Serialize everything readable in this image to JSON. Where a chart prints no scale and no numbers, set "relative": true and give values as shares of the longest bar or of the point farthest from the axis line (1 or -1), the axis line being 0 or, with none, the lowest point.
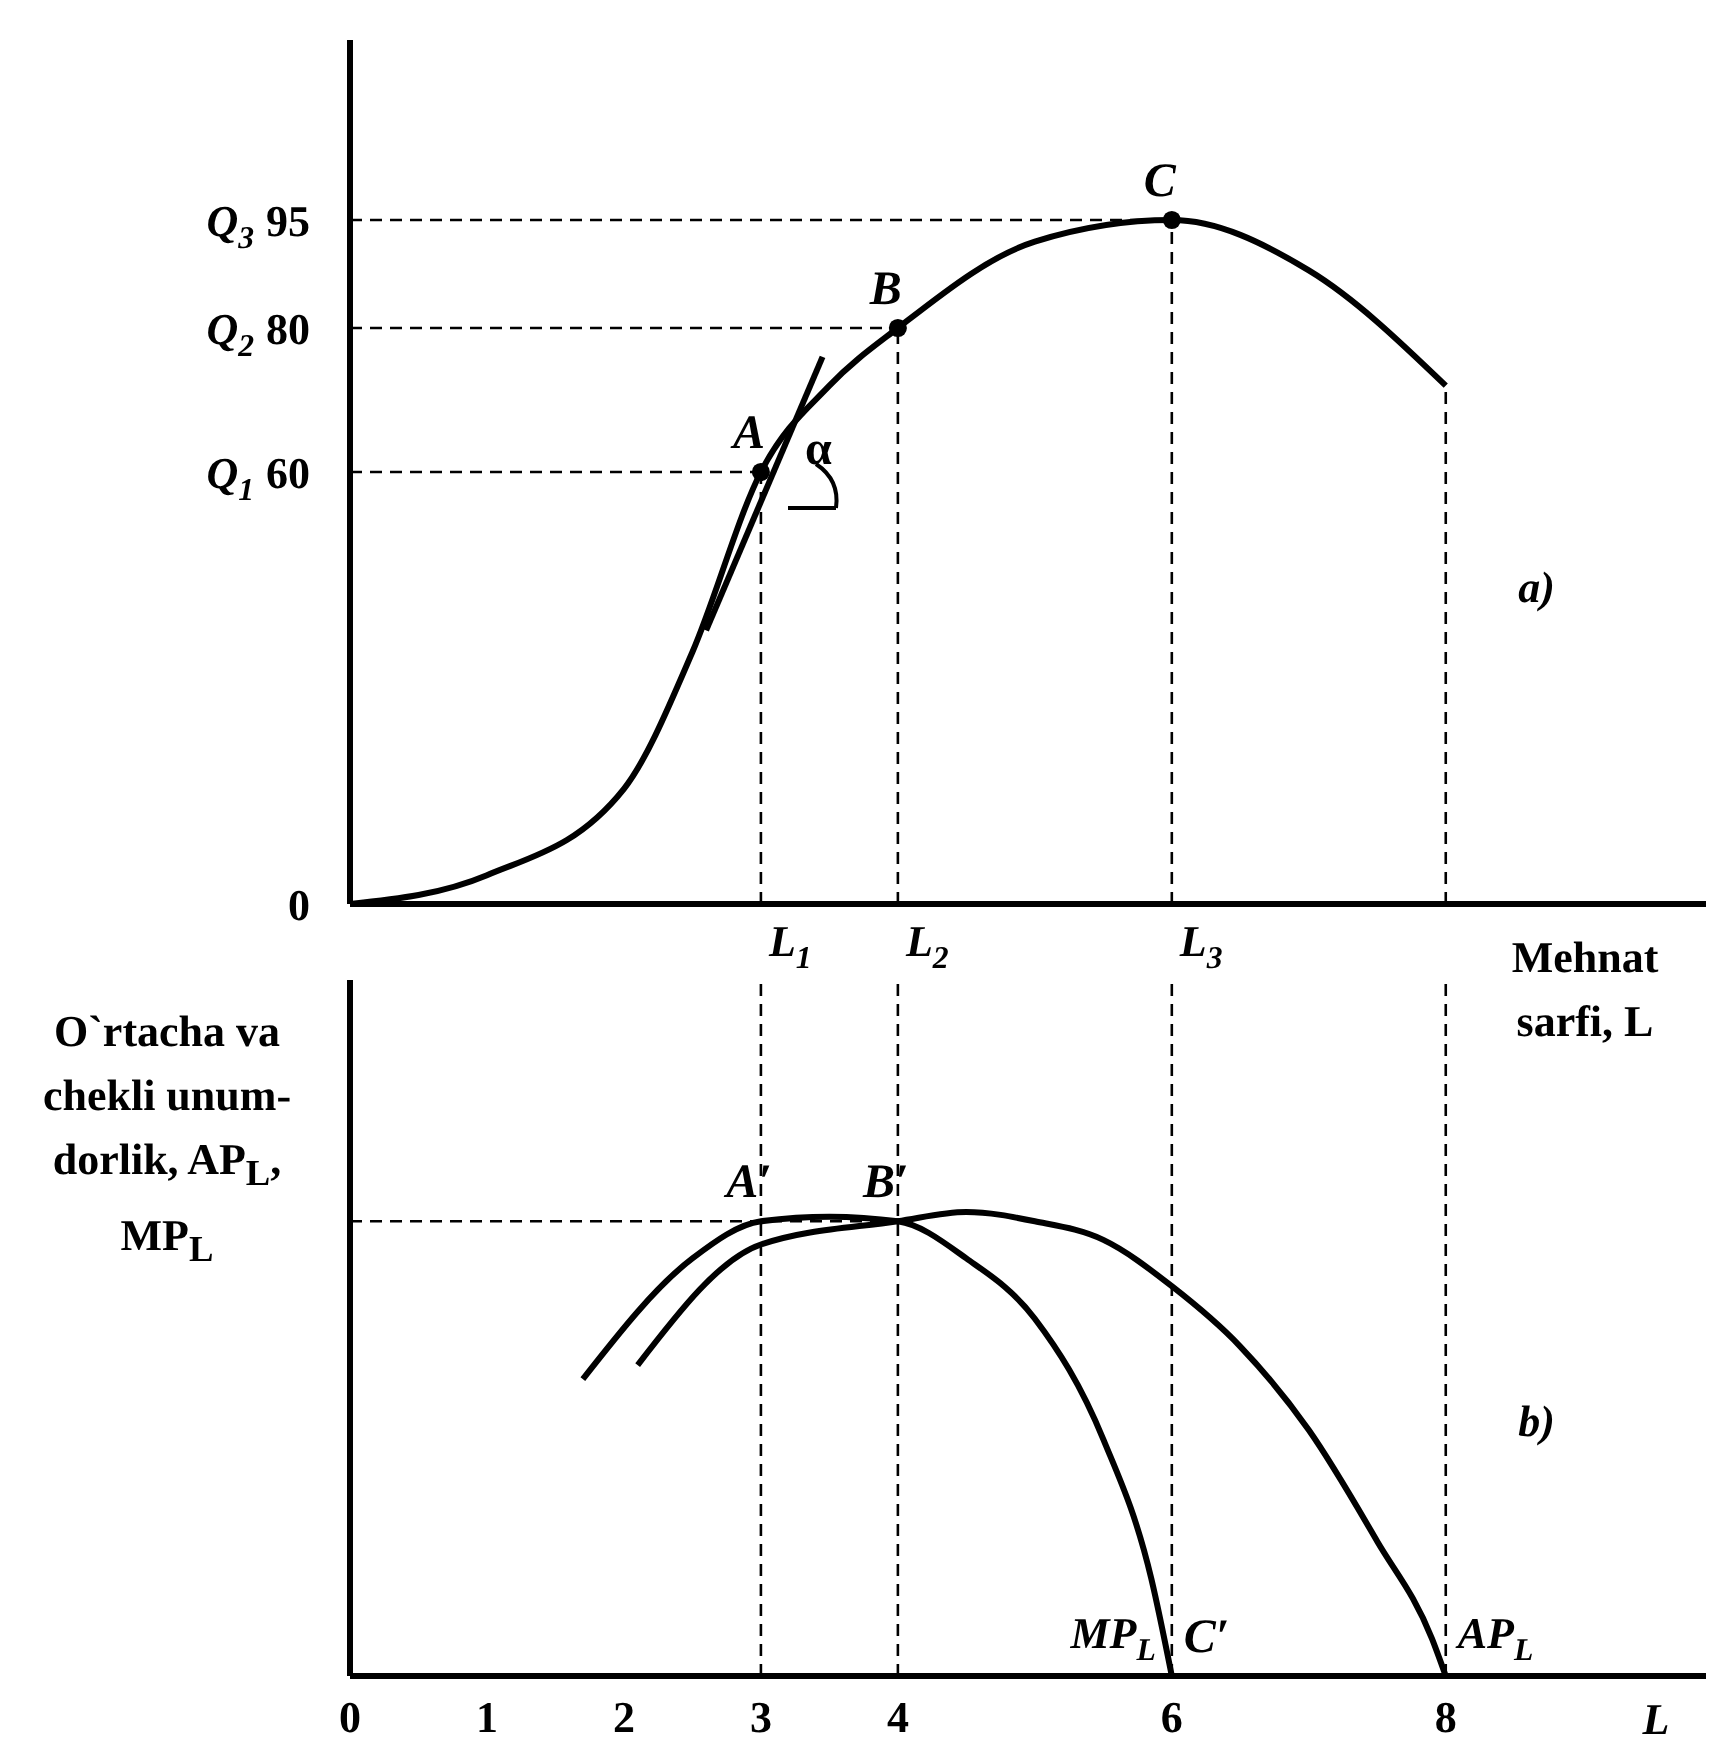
{
  "chart_data": [
    {
      "type": "line",
      "xlabel": "Mehnat sarfi, L",
      "xlim": [
        0,
        9.9
      ],
      "ylim": [
        0,
        120
      ],
      "tick_labels": "y",
      "yticks": [
        0,
        60,
        80,
        95
      ],
      "series": [
        {
          "color": "#000000",
          "x": [
            0,
            1,
            2,
            2.5,
            3,
            3.5,
            4,
            5,
            6,
            7,
            8
          ],
          "values": [
            0,
            4,
            16,
            35,
            60,
            72,
            80,
            92,
            95,
            88,
            72
          ]
        },
        {
          "color": "#000000",
          "x": [
            2.6,
            3.45
          ],
          "values": [
            38,
            76
          ]
        },
        {
          "type": "scatter",
          "marker": "circle",
          "color": "#000000",
          "x": [
            3,
            4,
            6
          ],
          "values": [
            60,
            80,
            95
          ]
        }
      ],
      "ref_lines": [
        {
          "axis": "y",
          "value": 60,
          "label": "Q$_{1}$",
          "line_style": "dashed"
        },
        {
          "axis": "y",
          "value": 80,
          "label": "Q$_{2}$",
          "line_style": "dashed"
        },
        {
          "axis": "y",
          "value": 95,
          "label": "Q$_{3}$",
          "line_style": "dashed"
        },
        {
          "axis": "x",
          "value": 3,
          "label": "L$_{1}$",
          "line_style": "dashed"
        },
        {
          "axis": "x",
          "value": 4,
          "label": "L$_{2}$",
          "line_style": "dashed"
        },
        {
          "axis": "x",
          "value": 6,
          "label": "L$_{3}$",
          "line_style": "dashed"
        },
        {
          "axis": "x",
          "value": 8,
          "line_style": "dashed"
        }
      ],
      "annotations": [
        {
          "text": "A",
          "x": 3,
          "y": 60
        },
        {
          "text": "B",
          "x": 4,
          "y": 80
        },
        {
          "text": "C",
          "x": 6,
          "y": 95
        },
        {
          "text": "α",
          "x": 3,
          "y": 60
        },
        "a)"
      ],
      "grid": false,
      "legend": false,
      "marker": "none",
      "line_style": "solid"
    },
    {
      "type": "line",
      "relative": true,
      "xlabel": "L",
      "ylabel": "O`rtacha va chekli unum-dorlik, AP$_{L}$, MP$_{L}$",
      "xlim": [
        0,
        9.9
      ],
      "xticks": [
        0,
        1,
        2,
        3,
        4,
        6,
        8
      ],
      "series": [
        {
          "name": "AP$_{L}$",
          "color": "#000000",
          "x": [
            2.1,
            3,
            4,
            4.5,
            5,
            5.5,
            6,
            6.5,
            7,
            7.5,
            7.9,
            8
          ],
          "values": [
            0.67,
            0.93,
            0.98,
            1,
            0.98,
            0.94,
            0.84,
            0.71,
            0.53,
            0.29,
            0.08,
            0
          ]
        },
        {
          "name": "MP$_{L}$",
          "color": "#000000",
          "x": [
            1.7,
            2.5,
            3,
            3.5,
            4,
            4.5,
            5,
            5.5,
            5.85,
            6
          ],
          "values": [
            0.64,
            0.9,
            0.98,
            0.99,
            0.98,
            0.9,
            0.77,
            0.51,
            0.21,
            0
          ]
        }
      ],
      "ref_lines": [
        {
          "axis": "y",
          "value": 0.98,
          "line_style": "dashed"
        },
        {
          "axis": "x",
          "value": 3,
          "line_style": "dashed"
        },
        {
          "axis": "x",
          "value": 4,
          "line_style": "dashed"
        },
        {
          "axis": "x",
          "value": 6,
          "line_style": "dashed"
        },
        {
          "axis": "x",
          "value": 8,
          "line_style": "dashed"
        }
      ],
      "annotations": [
        {
          "text": "A′",
          "x": 3,
          "y": 0.98
        },
        {
          "text": "B′",
          "x": 4,
          "y": 0.98
        },
        {
          "text": "C′",
          "x": 6,
          "y": 0
        },
        "b)"
      ],
      "grid": false,
      "legend": false,
      "marker": "none",
      "line_style": "solid"
    }
  ]
}
